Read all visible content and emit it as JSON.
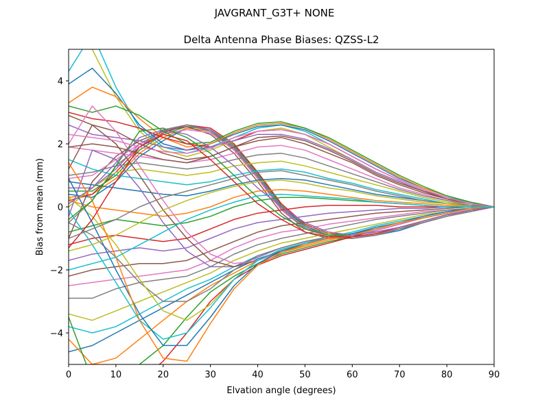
{
  "suptitle": "JAVGRANT_G3T+   NONE",
  "chart_data": {
    "type": "line",
    "title": "Delta Antenna Phase Biases: QZSS-L2",
    "xlabel": "Elvation angle (degrees)",
    "ylabel": "Bias from mean (mm)",
    "xlim": [
      0,
      90
    ],
    "ylim": [
      -5,
      5
    ],
    "xticks": [
      0,
      10,
      20,
      30,
      40,
      50,
      60,
      70,
      80,
      90
    ],
    "yticks": [
      -4,
      -2,
      0,
      2,
      4
    ],
    "grid": false,
    "x": [
      0,
      5,
      10,
      15,
      20,
      25,
      30,
      35,
      40,
      45,
      50,
      55,
      60,
      65,
      70,
      75,
      80,
      85,
      90
    ],
    "colors": [
      "#1f77b4",
      "#ff7f0e",
      "#2ca02c",
      "#d62728",
      "#9467bd",
      "#8c564b",
      "#e377c2",
      "#7f7f7f",
      "#bcbd22",
      "#17becf"
    ],
    "series": [
      {
        "values": [
          0.4,
          0.3,
          0.8,
          1.6,
          2.1,
          2.5,
          2.4,
          1.9,
          1.0,
          0.0,
          -0.6,
          -0.9,
          -1.0,
          -0.9,
          -0.75,
          -0.5,
          -0.3,
          -0.15,
          0
        ]
      },
      {
        "values": [
          0.3,
          0.4,
          0.9,
          1.7,
          2.2,
          2.5,
          2.4,
          1.8,
          0.9,
          -0.1,
          -0.7,
          -0.95,
          -1.0,
          -0.85,
          -0.7,
          -0.45,
          -0.25,
          -0.1,
          0
        ]
      },
      {
        "values": [
          0.5,
          0.5,
          1.0,
          1.8,
          2.3,
          2.55,
          2.45,
          1.95,
          1.05,
          0.05,
          -0.6,
          -0.9,
          -0.95,
          -0.85,
          -0.7,
          -0.5,
          -0.3,
          -0.15,
          0
        ]
      },
      {
        "values": [
          0.2,
          0.4,
          1.1,
          1.9,
          2.35,
          2.6,
          2.5,
          2.0,
          1.1,
          0.1,
          -0.55,
          -0.85,
          -0.9,
          -0.8,
          -0.65,
          -0.45,
          -0.25,
          -0.1,
          0
        ]
      },
      {
        "values": [
          0.6,
          0.6,
          1.2,
          2.0,
          2.4,
          2.6,
          2.45,
          1.9,
          1.0,
          0.0,
          -0.65,
          -0.9,
          -1.0,
          -0.9,
          -0.7,
          -0.5,
          -0.3,
          -0.1,
          0
        ]
      },
      {
        "values": [
          -1.0,
          0.8,
          1.6,
          2.1,
          2.4,
          2.55,
          2.3,
          1.7,
          0.8,
          -0.2,
          -0.8,
          -1.0,
          -1.0,
          -0.9,
          -0.7,
          -0.5,
          -0.3,
          -0.1,
          0
        ]
      },
      {
        "values": [
          0.9,
          1.0,
          1.5,
          2.0,
          2.3,
          2.45,
          2.35,
          1.8,
          0.9,
          -0.1,
          -0.7,
          -0.95,
          -1.0,
          -0.85,
          -0.7,
          -0.5,
          -0.3,
          -0.1,
          0
        ]
      },
      {
        "values": [
          -0.5,
          0.2,
          1.3,
          1.9,
          2.45,
          2.6,
          2.4,
          1.85,
          0.95,
          -0.05,
          -0.7,
          -0.9,
          -1.0,
          -0.9,
          -0.7,
          -0.5,
          -0.3,
          -0.15,
          0
        ]
      },
      {
        "values": [
          5.8,
          5.0,
          3.5,
          2.4,
          1.8,
          1.6,
          1.8,
          2.1,
          2.4,
          2.5,
          2.3,
          1.9,
          1.5,
          1.1,
          0.8,
          0.5,
          0.3,
          0.1,
          0
        ]
      },
      {
        "values": [
          4.3,
          5.5,
          3.8,
          2.5,
          1.9,
          1.7,
          1.9,
          2.2,
          2.5,
          2.6,
          2.4,
          2.0,
          1.6,
          1.2,
          0.85,
          0.55,
          0.3,
          0.15,
          0
        ]
      },
      {
        "values": [
          3.9,
          4.4,
          3.6,
          2.6,
          2.0,
          1.8,
          2.0,
          2.3,
          2.55,
          2.6,
          2.45,
          2.1,
          1.7,
          1.3,
          0.9,
          0.6,
          0.35,
          0.15,
          0
        ]
      },
      {
        "values": [
          3.3,
          3.8,
          3.5,
          2.8,
          2.2,
          1.9,
          2.0,
          2.35,
          2.6,
          2.65,
          2.5,
          2.15,
          1.75,
          1.35,
          0.95,
          0.6,
          0.35,
          0.15,
          0
        ]
      },
      {
        "values": [
          3.2,
          3.0,
          3.2,
          2.9,
          2.4,
          2.0,
          2.05,
          2.4,
          2.65,
          2.7,
          2.5,
          2.2,
          1.8,
          1.4,
          1.0,
          0.65,
          0.35,
          0.15,
          0
        ]
      },
      {
        "values": [
          3.0,
          2.8,
          2.7,
          2.5,
          2.2,
          2.0,
          1.9,
          2.1,
          2.4,
          2.45,
          2.3,
          2.0,
          1.6,
          1.2,
          0.85,
          0.55,
          0.3,
          0.1,
          0
        ]
      },
      {
        "values": [
          2.6,
          2.3,
          2.2,
          2.1,
          1.9,
          1.8,
          1.9,
          2.1,
          2.3,
          2.3,
          2.15,
          1.85,
          1.5,
          1.1,
          0.8,
          0.5,
          0.3,
          0.1,
          0
        ]
      },
      {
        "values": [
          2.9,
          2.6,
          2.4,
          2.0,
          1.7,
          1.5,
          1.6,
          1.9,
          2.1,
          2.2,
          2.0,
          1.7,
          1.4,
          1.0,
          0.7,
          0.45,
          0.25,
          0.1,
          0
        ]
      },
      {
        "values": [
          1.9,
          1.8,
          1.7,
          1.6,
          1.5,
          1.4,
          1.5,
          1.7,
          1.9,
          1.95,
          1.8,
          1.5,
          1.2,
          0.9,
          0.6,
          0.4,
          0.2,
          0.1,
          0
        ]
      },
      {
        "values": [
          1.0,
          1.1,
          1.3,
          1.4,
          1.3,
          1.2,
          1.3,
          1.5,
          1.65,
          1.7,
          1.55,
          1.3,
          1.05,
          0.8,
          0.55,
          0.35,
          0.2,
          0.05,
          0
        ]
      },
      {
        "values": [
          0.0,
          0.6,
          1.1,
          1.2,
          1.1,
          1.0,
          1.1,
          1.3,
          1.4,
          1.45,
          1.3,
          1.1,
          0.9,
          0.7,
          0.5,
          0.3,
          0.15,
          0.05,
          0
        ]
      },
      {
        "values": [
          1.5,
          1.2,
          1.0,
          0.9,
          0.8,
          0.7,
          0.8,
          1.0,
          1.15,
          1.2,
          1.1,
          0.9,
          0.75,
          0.55,
          0.4,
          0.25,
          0.1,
          0.05,
          0
        ]
      },
      {
        "values": [
          0.8,
          0.7,
          0.6,
          0.5,
          0.4,
          0.35,
          0.5,
          0.7,
          0.85,
          0.9,
          0.85,
          0.7,
          0.55,
          0.4,
          0.3,
          0.2,
          0.1,
          0.05,
          0
        ]
      },
      {
        "values": [
          0.2,
          0.0,
          -0.1,
          -0.2,
          -0.3,
          -0.2,
          0.0,
          0.3,
          0.5,
          0.55,
          0.5,
          0.4,
          0.3,
          0.2,
          0.15,
          0.1,
          0.05,
          0.0,
          0
        ]
      },
      {
        "values": [
          -0.8,
          -0.6,
          -0.4,
          -0.5,
          -0.6,
          -0.5,
          -0.3,
          0.0,
          0.2,
          0.3,
          0.3,
          0.25,
          0.2,
          0.15,
          0.1,
          0.05,
          0.0,
          0.0,
          0
        ]
      },
      {
        "values": [
          -1.2,
          -1.0,
          -0.9,
          -1.0,
          -1.1,
          -1.0,
          -0.7,
          -0.4,
          -0.2,
          -0.1,
          0.0,
          0.05,
          0.05,
          0.05,
          0.0,
          0.0,
          0.0,
          0.0,
          0
        ]
      },
      {
        "values": [
          -1.7,
          -1.5,
          -1.4,
          -1.3,
          -1.4,
          -1.3,
          -1.0,
          -0.7,
          -0.5,
          -0.4,
          -0.3,
          -0.2,
          -0.15,
          -0.1,
          -0.05,
          -0.05,
          0.0,
          0.0,
          0
        ]
      },
      {
        "values": [
          -2.2,
          -2.0,
          -1.9,
          -1.8,
          -1.8,
          -1.7,
          -1.4,
          -1.1,
          -0.8,
          -0.6,
          -0.5,
          -0.4,
          -0.3,
          -0.2,
          -0.15,
          -0.1,
          -0.05,
          0.0,
          0
        ]
      },
      {
        "values": [
          -2.5,
          -2.4,
          -2.3,
          -2.2,
          -2.1,
          -2.0,
          -1.7,
          -1.3,
          -1.0,
          -0.8,
          -0.7,
          -0.55,
          -0.45,
          -0.35,
          -0.25,
          -0.15,
          -0.1,
          -0.05,
          0
        ]
      },
      {
        "values": [
          -2.9,
          -2.9,
          -2.6,
          -2.4,
          -2.3,
          -2.2,
          -1.9,
          -1.5,
          -1.2,
          -1.0,
          -0.85,
          -0.7,
          -0.55,
          -0.4,
          -0.3,
          -0.2,
          -0.1,
          -0.05,
          0
        ]
      },
      {
        "values": [
          -3.4,
          -3.6,
          -3.3,
          -3.0,
          -2.7,
          -2.4,
          -2.1,
          -1.7,
          -1.4,
          -1.15,
          -1.0,
          -0.85,
          -0.7,
          -0.55,
          -0.4,
          -0.25,
          -0.15,
          -0.05,
          0
        ]
      },
      {
        "values": [
          -3.8,
          -4.0,
          -3.8,
          -3.4,
          -3.0,
          -2.6,
          -2.3,
          -1.9,
          -1.55,
          -1.3,
          -1.1,
          -0.95,
          -0.8,
          -0.6,
          -0.45,
          -0.3,
          -0.15,
          -0.05,
          0
        ]
      },
      {
        "values": [
          -4.6,
          -4.4,
          -4.0,
          -3.6,
          -3.2,
          -2.8,
          -2.4,
          -2.0,
          -1.65,
          -1.4,
          -1.2,
          -1.0,
          -0.85,
          -0.65,
          -0.5,
          -0.3,
          -0.15,
          -0.05,
          0
        ]
      },
      {
        "values": [
          -4.2,
          -5.0,
          -4.8,
          -4.2,
          -3.6,
          -3.0,
          -2.5,
          -2.1,
          -1.7,
          -1.45,
          -1.25,
          -1.05,
          -0.9,
          -0.7,
          -0.5,
          -0.35,
          -0.2,
          -0.05,
          0
        ]
      },
      {
        "values": [
          -3.5,
          -5.5,
          -5.6,
          -5.0,
          -4.4,
          -3.5,
          -2.7,
          -2.2,
          -1.8,
          -1.5,
          -1.3,
          -1.1,
          -0.95,
          -0.75,
          -0.55,
          -0.35,
          -0.2,
          -0.05,
          0
        ]
      },
      {
        "values": [
          -5.6,
          -5.8,
          -6.0,
          -5.5,
          -4.9,
          -4.0,
          -3.0,
          -2.3,
          -1.85,
          -1.55,
          -1.35,
          -1.15,
          -0.95,
          -0.75,
          -0.55,
          -0.35,
          -0.2,
          -0.05,
          0
        ]
      },
      {
        "values": [
          -0.3,
          1.8,
          1.5,
          0.6,
          -0.5,
          -1.4,
          -1.9,
          -1.9,
          -1.6,
          -1.3,
          -1.1,
          -1.0,
          -0.9,
          -0.75,
          -0.55,
          -0.35,
          -0.2,
          -0.05,
          0
        ]
      },
      {
        "values": [
          1.2,
          2.6,
          2.0,
          1.0,
          -0.1,
          -1.0,
          -1.7,
          -1.9,
          -1.7,
          -1.4,
          -1.15,
          -1.0,
          -0.9,
          -0.75,
          -0.55,
          -0.35,
          -0.2,
          -0.05,
          0
        ]
      },
      {
        "values": [
          2.0,
          3.2,
          2.4,
          1.3,
          0.2,
          -0.8,
          -1.5,
          -1.8,
          -1.7,
          -1.45,
          -1.2,
          -1.0,
          -0.9,
          -0.75,
          -0.55,
          -0.35,
          -0.2,
          -0.05,
          0
        ]
      },
      {
        "values": [
          -0.5,
          -0.9,
          -1.6,
          -2.4,
          -3.0,
          -3.0,
          -2.6,
          -2.0,
          -1.55,
          -1.3,
          -1.1,
          -0.95,
          -0.85,
          -0.7,
          -0.5,
          -0.35,
          -0.2,
          -0.05,
          0
        ]
      },
      {
        "values": [
          0.3,
          -0.3,
          -1.2,
          -2.3,
          -3.3,
          -3.6,
          -3.1,
          -2.3,
          -1.7,
          -1.35,
          -1.15,
          -1.0,
          -0.9,
          -0.7,
          -0.5,
          -0.35,
          -0.2,
          -0.05,
          0
        ]
      },
      {
        "values": [
          -0.1,
          -1.2,
          -2.4,
          -3.6,
          -4.2,
          -4.0,
          -3.2,
          -2.3,
          -1.7,
          -1.35,
          -1.15,
          -1.0,
          -0.85,
          -0.7,
          -0.5,
          -0.35,
          -0.2,
          -0.05,
          0
        ]
      },
      {
        "values": [
          0.9,
          -0.5,
          -2.0,
          -3.4,
          -4.4,
          -4.4,
          -3.5,
          -2.5,
          -1.8,
          -1.4,
          -1.2,
          -1.0,
          -0.85,
          -0.7,
          -0.5,
          -0.35,
          -0.2,
          -0.05,
          0
        ]
      },
      {
        "values": [
          1.4,
          0.2,
          -1.6,
          -3.6,
          -4.8,
          -4.9,
          -3.7,
          -2.6,
          -1.85,
          -1.45,
          -1.2,
          -1.0,
          -0.9,
          -0.7,
          -0.5,
          -0.35,
          -0.2,
          -0.05,
          0
        ]
      },
      {
        "values": [
          -0.4,
          0.2,
          1.3,
          2.4,
          2.5,
          2.2,
          1.7,
          1.0,
          0.3,
          -0.3,
          -0.7,
          -0.9,
          -0.9,
          -0.8,
          -0.65,
          -0.45,
          -0.25,
          -0.1,
          0
        ]
      },
      {
        "values": [
          -1.3,
          -0.4,
          0.8,
          1.9,
          2.3,
          2.1,
          1.5,
          0.8,
          0.1,
          -0.4,
          -0.8,
          -0.95,
          -0.95,
          -0.85,
          -0.65,
          -0.45,
          -0.25,
          -0.1,
          0
        ]
      },
      {
        "values": [
          0.1,
          0.6,
          1.4,
          2.2,
          2.45,
          2.3,
          1.9,
          1.3,
          0.6,
          0.0,
          -0.5,
          -0.8,
          -0.9,
          -0.8,
          -0.65,
          -0.45,
          -0.25,
          -0.1,
          0
        ]
      },
      {
        "values": [
          1.9,
          2.0,
          1.9,
          1.7,
          1.5,
          1.4,
          1.6,
          1.9,
          2.2,
          2.25,
          2.1,
          1.8,
          1.45,
          1.05,
          0.75,
          0.5,
          0.25,
          0.1,
          0
        ]
      },
      {
        "values": [
          2.3,
          2.2,
          2.1,
          1.9,
          1.75,
          1.7,
          1.85,
          2.2,
          2.4,
          2.45,
          2.3,
          2.0,
          1.6,
          1.2,
          0.85,
          0.55,
          0.3,
          0.1,
          0
        ]
      },
      {
        "values": [
          -1.0,
          -0.7,
          -0.4,
          0.0,
          0.3,
          0.5,
          0.7,
          0.9,
          1.1,
          1.15,
          1.0,
          0.85,
          0.7,
          0.5,
          0.35,
          0.2,
          0.1,
          0.05,
          0
        ]
      },
      {
        "values": [
          -1.4,
          -1.2,
          -0.9,
          -0.5,
          -0.1,
          0.2,
          0.45,
          0.65,
          0.8,
          0.85,
          0.75,
          0.6,
          0.5,
          0.35,
          0.25,
          0.15,
          0.1,
          0.0,
          0
        ]
      },
      {
        "values": [
          -2.0,
          -1.8,
          -1.6,
          -1.2,
          -0.8,
          -0.4,
          -0.1,
          0.15,
          0.35,
          0.4,
          0.35,
          0.3,
          0.25,
          0.15,
          0.1,
          0.05,
          0.0,
          0.0,
          0
        ]
      }
    ]
  }
}
